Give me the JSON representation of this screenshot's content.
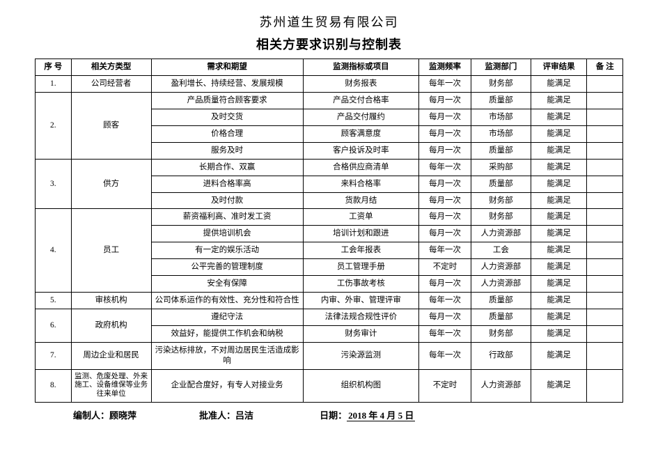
{
  "company_name": "苏州道生贸易有限公司",
  "doc_title": "相关方要求识别与控制表",
  "headers": {
    "seq": "序  号",
    "type": "相关方类型",
    "need": "需求和期望",
    "indicator": "监测指标或项目",
    "freq": "监测频率",
    "dept": "监测部门",
    "result": "评审结果",
    "note": "备  注"
  },
  "groups": [
    {
      "seq": "1.",
      "type": "公司经营者",
      "rows": [
        {
          "need": "盈利增长、持续经营、发展规模",
          "indicator": "财务报表",
          "freq": "每年一次",
          "dept": "财务部",
          "result": "能满足"
        }
      ]
    },
    {
      "seq": "2.",
      "type": "顾客",
      "rows": [
        {
          "need": "产品质量符合顾客要求",
          "indicator": "产品交付合格率",
          "freq": "每月一次",
          "dept": "质量部",
          "result": "能满足"
        },
        {
          "need": "及时交货",
          "indicator": "产品交付履约",
          "freq": "每月一次",
          "dept": "市场部",
          "result": "能满足"
        },
        {
          "need": "价格合理",
          "indicator": "顾客满意度",
          "freq": "每月一次",
          "dept": "市场部",
          "result": "能满足"
        },
        {
          "need": "服务及时",
          "indicator": "客户投诉及时率",
          "freq": "每月一次",
          "dept": "质量部",
          "result": "能满足"
        }
      ]
    },
    {
      "seq": "3.",
      "type": "供方",
      "rows": [
        {
          "need": "长期合作、双赢",
          "indicator": "合格供应商清单",
          "freq": "每年一次",
          "dept": "采购部",
          "result": "能满足"
        },
        {
          "need": "进料合格率高",
          "indicator": "来料合格率",
          "freq": "每月一次",
          "dept": "质量部",
          "result": "能满足"
        },
        {
          "need": "及时付款",
          "indicator": "货款月结",
          "freq": "每月一次",
          "dept": "财务部",
          "result": "能满足"
        }
      ]
    },
    {
      "seq": "4.",
      "type": "员工",
      "rows": [
        {
          "need": "薪资福利高、准时发工资",
          "indicator": "工资单",
          "freq": "每月一次",
          "dept": "财务部",
          "result": "能满足"
        },
        {
          "need": "提供培训机会",
          "indicator": "培训计划和跟进",
          "freq": "每月一次",
          "dept": "人力资源部",
          "result": "能满足"
        },
        {
          "need": "有一定的娱乐活动",
          "indicator": "工会年报表",
          "freq": "每年一次",
          "dept": "工会",
          "result": "能满足"
        },
        {
          "need": "公平完善的管理制度",
          "indicator": "员工管理手册",
          "freq": "不定时",
          "dept": "人力资源部",
          "result": "能满足"
        },
        {
          "need": "安全有保障",
          "indicator": "工伤事故考核",
          "freq": "每月一次",
          "dept": "人力资源部",
          "result": "能满足"
        }
      ]
    },
    {
      "seq": "5.",
      "type": "审核机构",
      "rows": [
        {
          "need": "公司体系运作的有效性、充分性和符合性",
          "indicator": "内审、外审、管理评审",
          "freq": "每年一次",
          "dept": "质量部",
          "result": "能满足"
        }
      ]
    },
    {
      "seq": "6.",
      "type": "政府机构",
      "rows": [
        {
          "need": "遵纪守法",
          "indicator": "法律法规合规性评价",
          "freq": "每月一次",
          "dept": "质量部",
          "result": "能满足"
        },
        {
          "need": "效益好，能提供工作机会和纳税",
          "indicator": "财务审计",
          "freq": "每年一次",
          "dept": "财务部",
          "result": "能满足"
        }
      ]
    },
    {
      "seq": "7.",
      "type": "周边企业和居民",
      "rows": [
        {
          "need": "污染达标排放，不对周边居民生活造成影响",
          "indicator": "污染源监测",
          "freq": "每年一次",
          "dept": "行政部",
          "result": "能满足"
        }
      ]
    },
    {
      "seq": "8.",
      "type": "监测、危废处理、外来施工、设备维保等业务往来单位",
      "type_small": true,
      "rows": [
        {
          "need": "企业配合度好，有专人对接业务",
          "indicator": "组织机构图",
          "freq": "不定时",
          "dept": "人力资源部",
          "result": "能满足"
        }
      ]
    }
  ],
  "footer": {
    "author_label": "编制人：",
    "author_name": "顾晓萍",
    "approver_label": "批准人：",
    "approver_name": "吕洁",
    "date_label": "日期：",
    "date_value": "2018   年  4  月  5  日"
  },
  "colors": {
    "border": "#000000",
    "text": "#000000",
    "bg": "#ffffff"
  }
}
